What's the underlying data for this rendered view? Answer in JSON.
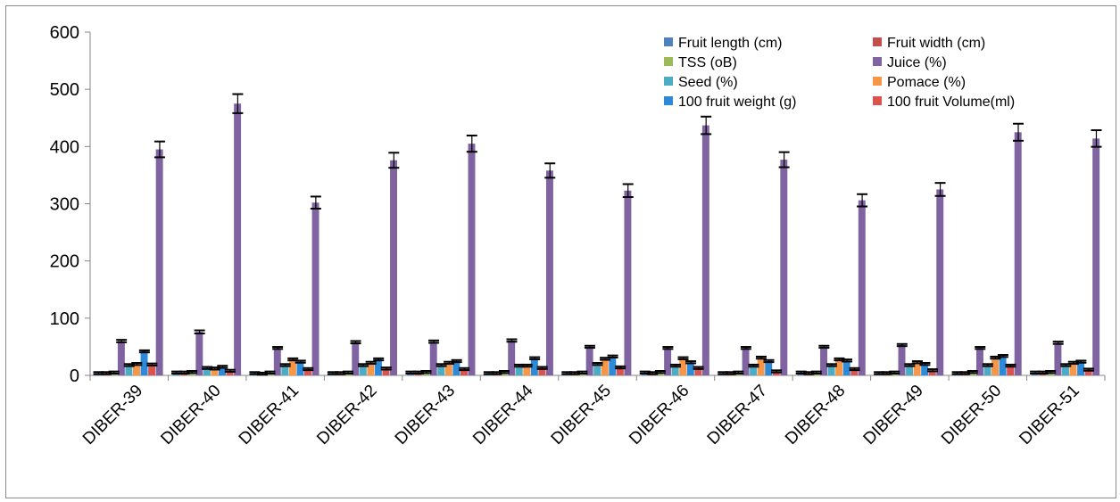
{
  "chart_data": {
    "type": "bar",
    "title": "",
    "xlabel": "",
    "ylabel": "",
    "ylim": [
      0,
      600
    ],
    "yticks": [
      0,
      100,
      200,
      300,
      400,
      500,
      600
    ],
    "grid": false,
    "error_bars": true,
    "legend_position": "top-right",
    "categories": [
      "DIBER-39",
      "DIBER-40",
      "DIBER-41",
      "DIBER-42",
      "DIBER-43",
      "DIBER-44",
      "DIBER-45",
      "DIBER-46",
      "DIBER-47",
      "DIBER-48",
      "DIBER-49",
      "DIBER-50",
      "DIBER-51"
    ],
    "series": [
      {
        "name": "Fruit length (cm)",
        "color": "#4f81bd",
        "values": [
          4,
          5,
          4,
          4,
          5,
          4,
          4,
          5,
          4,
          5,
          4,
          4,
          5
        ]
      },
      {
        "name": "Fruit width (cm)",
        "color": "#c0504d",
        "values": [
          4,
          5,
          3,
          4,
          5,
          4,
          4,
          4,
          4,
          4,
          4,
          4,
          5
        ]
      },
      {
        "name": "TSS (oB)",
        "color": "#9bbb59",
        "values": [
          5,
          6,
          5,
          5,
          6,
          6,
          5,
          6,
          5,
          5,
          5,
          6,
          6
        ]
      },
      {
        "name": "Juice (%)",
        "color": "#8064a2",
        "values": [
          60,
          76,
          48,
          58,
          59,
          61,
          50,
          48,
          48,
          50,
          53,
          48,
          57
        ]
      },
      {
        "name": "Seed (%)",
        "color": "#4bacc6",
        "values": [
          18,
          13,
          18,
          18,
          18,
          17,
          20,
          17,
          17,
          18,
          18,
          18,
          18
        ]
      },
      {
        "name": "Pomace (%)",
        "color": "#f79646",
        "values": [
          20,
          12,
          28,
          22,
          22,
          17,
          29,
          30,
          31,
          28,
          23,
          31,
          22
        ]
      },
      {
        "name": "100 fruit weight (g)",
        "color": "#2c8ad8",
        "values": [
          42,
          15,
          24,
          28,
          25,
          30,
          33,
          23,
          25,
          26,
          20,
          34,
          24
        ]
      },
      {
        "name": "100 fruit Volume(ml)",
        "color": "#d9534f",
        "values": [
          19,
          8,
          11,
          12,
          11,
          13,
          14,
          13,
          7,
          11,
          9,
          17,
          10
        ]
      },
      {
        "name": "",
        "color": "#8064a2",
        "values": [
          395,
          475,
          302,
          376,
          405,
          358,
          323,
          437,
          377,
          306,
          325,
          425,
          414
        ]
      }
    ],
    "legend": [
      "Fruit length (cm)",
      "Fruit width (cm)",
      "TSS (oB)",
      "Juice (%)",
      "Seed (%)",
      "Pomace (%)",
      "100 fruit weight (g)",
      "100 fruit Volume(ml)"
    ]
  }
}
